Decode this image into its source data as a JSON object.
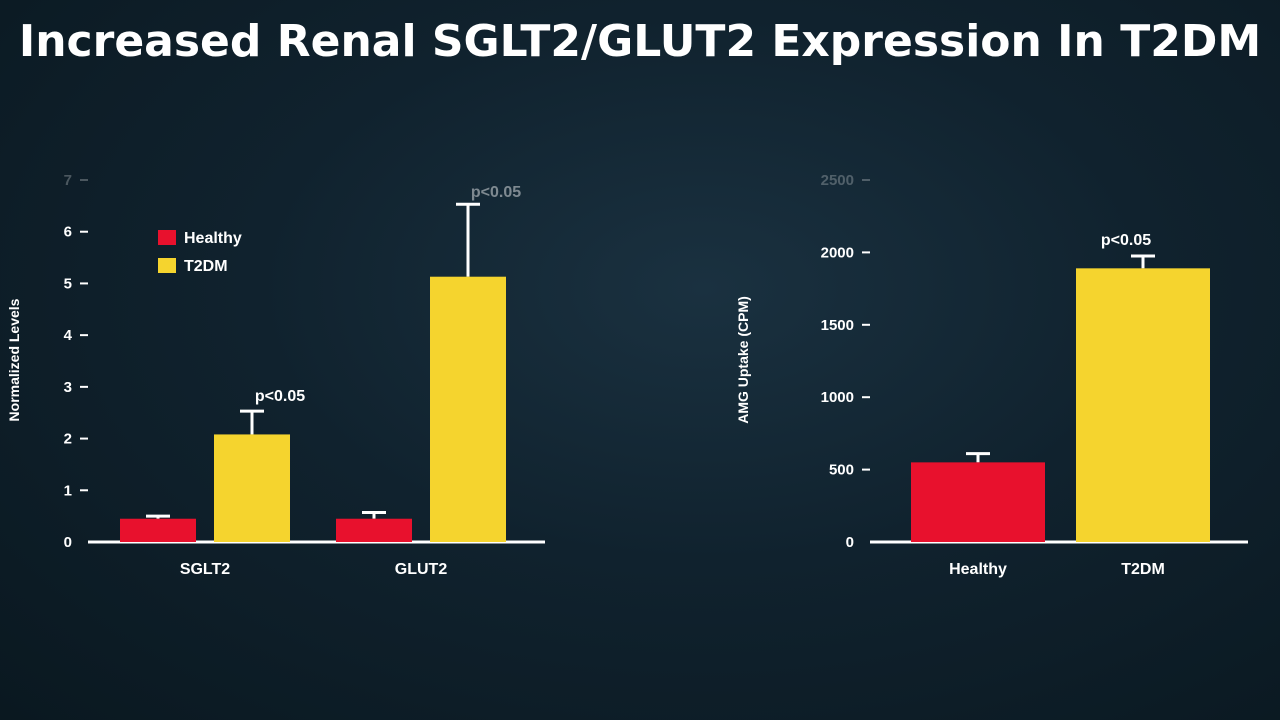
{
  "title": "Increased Renal SGLT2/GLUT2 Expression In T2DM",
  "colors": {
    "healthy": "#e8112d",
    "t2dm": "#f5d42e",
    "axis": "#ffffff"
  },
  "chart_data": [
    {
      "type": "bar",
      "title": "",
      "xlabel": "",
      "ylabel": "Normalized Levels",
      "ylim": [
        0,
        7
      ],
      "yticks": [
        0,
        1,
        2,
        3,
        4,
        5,
        6,
        7
      ],
      "grid": false,
      "legend": {
        "placement": "top-left",
        "entries": [
          "Healthy",
          "T2DM"
        ]
      },
      "categories": [
        "SGLT2",
        "GLUT2"
      ],
      "series": [
        {
          "name": "Healthy",
          "values": [
            0.45,
            0.45
          ],
          "error": [
            0.05,
            0.12
          ]
        },
        {
          "name": "T2DM",
          "values": [
            2.08,
            5.13
          ],
          "error": [
            0.45,
            1.4
          ]
        }
      ],
      "annotations": [
        {
          "text": "p<0.05",
          "category": "SGLT2",
          "series": "T2DM"
        },
        {
          "text": "p<0.05",
          "category": "GLUT2",
          "series": "T2DM"
        }
      ]
    },
    {
      "type": "bar",
      "title": "",
      "xlabel": "",
      "ylabel": "AMG Uptake (CPM)",
      "ylim": [
        0,
        2500
      ],
      "yticks": [
        0,
        500,
        1000,
        1500,
        2000,
        2500
      ],
      "grid": false,
      "categories": [
        "Healthy",
        "T2DM"
      ],
      "values": [
        550,
        1890
      ],
      "error": [
        60,
        85
      ],
      "annotations": [
        {
          "text": "p<0.05",
          "category": "T2DM"
        }
      ]
    }
  ]
}
